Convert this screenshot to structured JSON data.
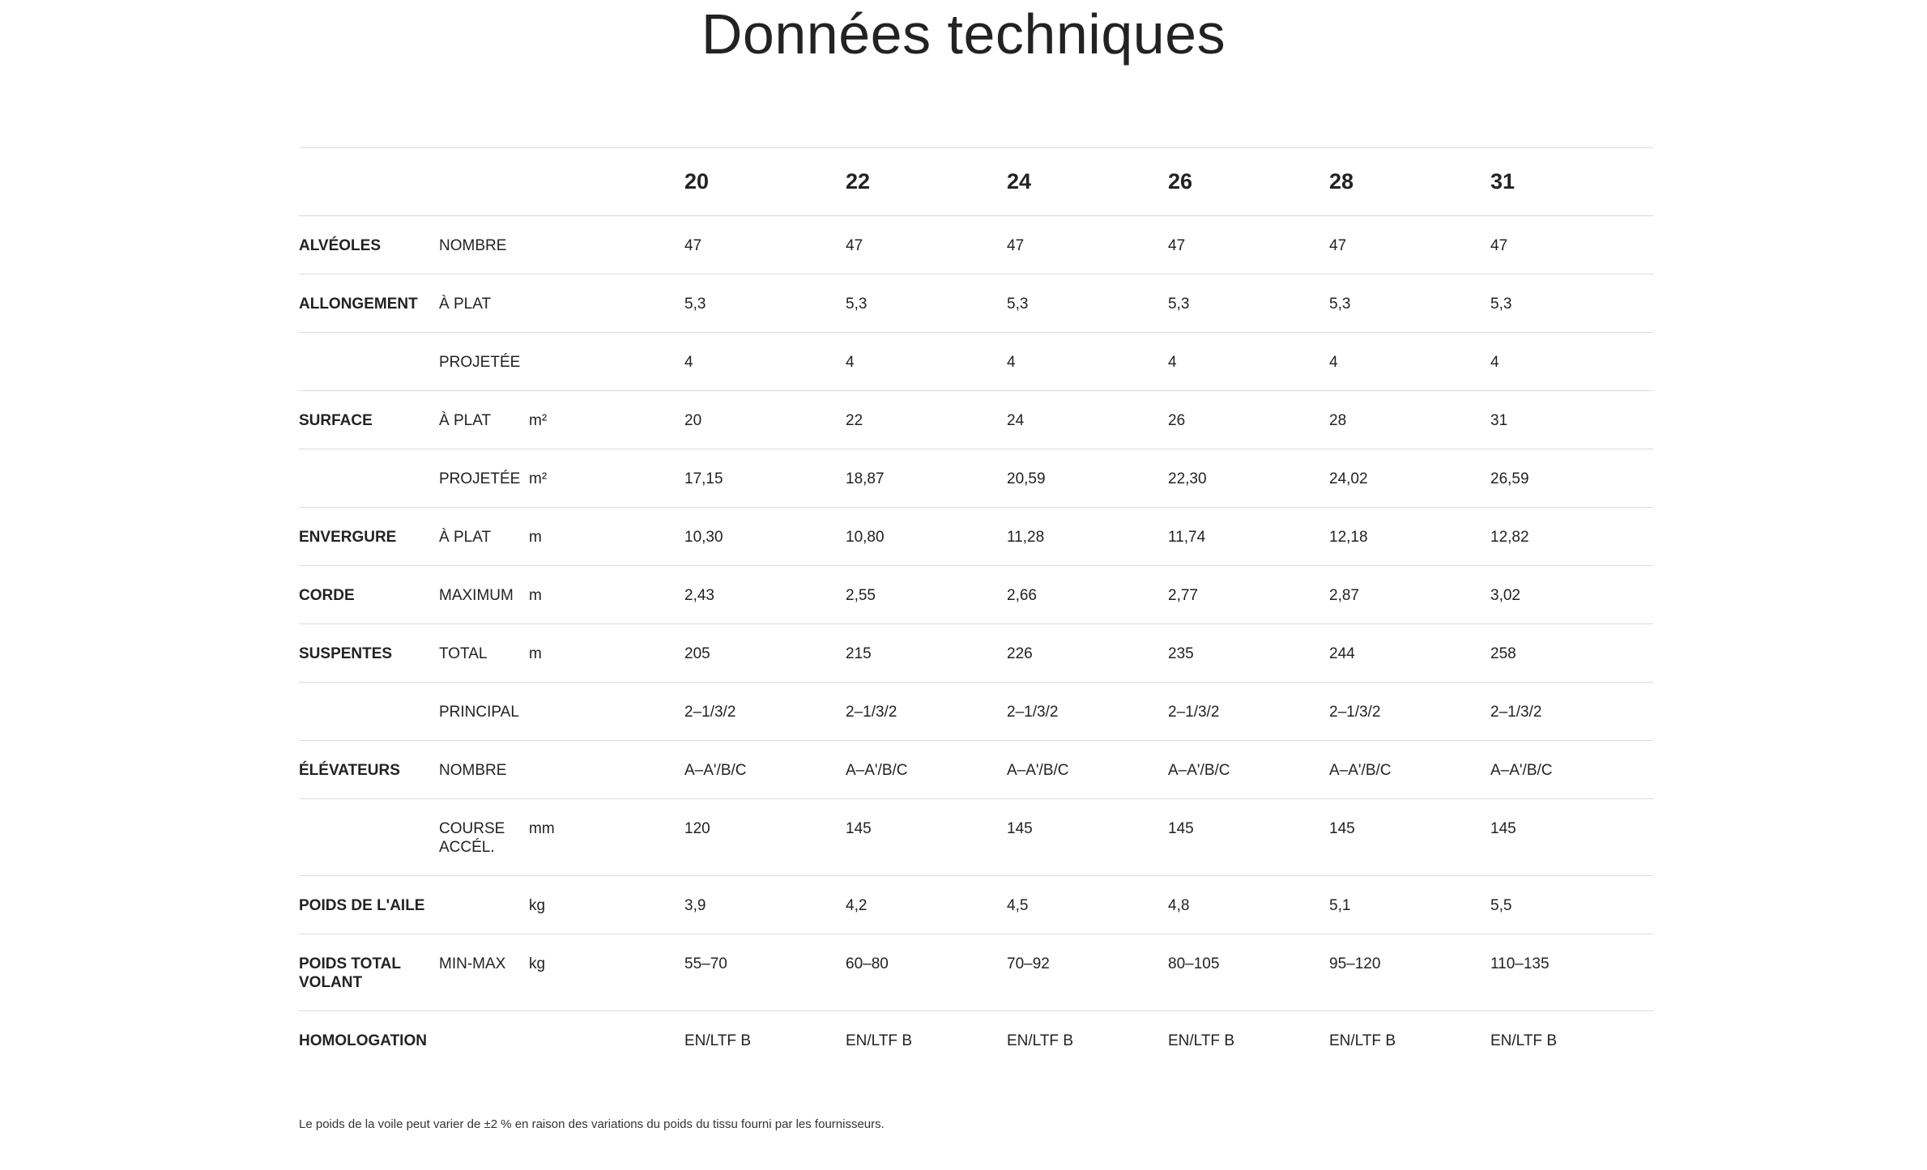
{
  "page": {
    "title": "Données techniques",
    "footnote": "Le poids de la voile peut varier de ±2 % en raison des variations du poids du tissu fourni par les fournisseurs."
  },
  "table": {
    "sizes": [
      "20",
      "22",
      "24",
      "26",
      "28",
      "31"
    ],
    "rows": [
      {
        "category": "ALVÉOLES",
        "sub": "NOMBRE",
        "unit": "",
        "values": [
          "47",
          "47",
          "47",
          "47",
          "47",
          "47"
        ]
      },
      {
        "category": "ALLONGEMENT",
        "sub": "À PLAT",
        "unit": "",
        "values": [
          "5,3",
          "5,3",
          "5,3",
          "5,3",
          "5,3",
          "5,3"
        ]
      },
      {
        "category": "",
        "sub": "PROJETÉE",
        "unit": "",
        "values": [
          "4",
          "4",
          "4",
          "4",
          "4",
          "4"
        ]
      },
      {
        "category": "SURFACE",
        "sub": "À PLAT",
        "unit": "m²",
        "values": [
          "20",
          "22",
          "24",
          "26",
          "28",
          "31"
        ]
      },
      {
        "category": "",
        "sub": "PROJETÉE",
        "unit": "m²",
        "values": [
          "17,15",
          "18,87",
          "20,59",
          "22,30",
          "24,02",
          "26,59"
        ]
      },
      {
        "category": "ENVERGURE",
        "sub": "À PLAT",
        "unit": "m",
        "values": [
          "10,30",
          "10,80",
          "11,28",
          "11,74",
          "12,18",
          "12,82"
        ]
      },
      {
        "category": "CORDE",
        "sub": "MAXIMUM",
        "unit": "m",
        "values": [
          "2,43",
          "2,55",
          "2,66",
          "2,77",
          "2,87",
          "3,02"
        ]
      },
      {
        "category": "SUSPENTES",
        "sub": "TOTAL",
        "unit": "m",
        "values": [
          "205",
          "215",
          "226",
          "235",
          "244",
          "258"
        ]
      },
      {
        "category": "",
        "sub": "PRINCIPAL",
        "unit": "",
        "values": [
          "2–1/3/2",
          "2–1/3/2",
          "2–1/3/2",
          "2–1/3/2",
          "2–1/3/2",
          "2–1/3/2"
        ]
      },
      {
        "category": "ÉLÉVATEURS",
        "sub": "NOMBRE",
        "unit": "",
        "values": [
          "A–A'/B/C",
          "A–A'/B/C",
          "A–A'/B/C",
          "A–A'/B/C",
          "A–A'/B/C",
          "A–A'/B/C"
        ]
      },
      {
        "category": "",
        "sub": "COURSE ACCÉL.",
        "unit": "mm",
        "values": [
          "120",
          "145",
          "145",
          "145",
          "145",
          "145"
        ]
      },
      {
        "category": "POIDS DE L'AILE",
        "sub": "",
        "unit": "kg",
        "values": [
          "3,9",
          "4,2",
          "4,5",
          "4,8",
          "5,1",
          "5,5"
        ]
      },
      {
        "category": "POIDS TOTAL VOLANT",
        "sub": "MIN-MAX",
        "unit": "kg",
        "values": [
          "55–70",
          "60–80",
          "70–92",
          "80–105",
          "95–120",
          "110–135"
        ]
      },
      {
        "category": "HOMOLOGATION",
        "sub": "",
        "unit": "",
        "values": [
          "EN/LTF B",
          "EN/LTF B",
          "EN/LTF B",
          "EN/LTF B",
          "EN/LTF B",
          "EN/LTF B"
        ]
      }
    ]
  }
}
